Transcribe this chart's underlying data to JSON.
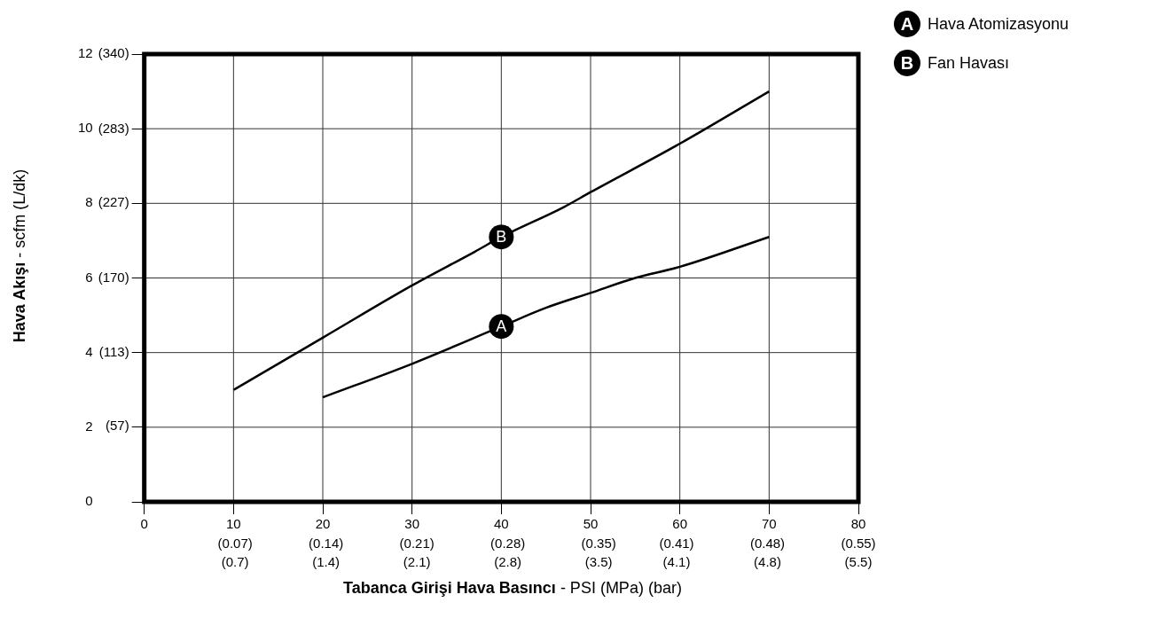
{
  "chart_data": {
    "type": "line",
    "xlabel": "Tabanca Girişi Hava Basıncı - PSI (MPa) (bar)",
    "ylabel": "Hava Akışı - scfm (L/dk)",
    "xlim": [
      0,
      80
    ],
    "ylim": [
      0,
      12
    ],
    "xticks": [
      0,
      10,
      20,
      30,
      40,
      50,
      60,
      70,
      80
    ],
    "x2lim": [
      0,
      0.55
    ],
    "x2ticks": [
      {
        "value": 0.07,
        "label": "(0.07)"
      },
      {
        "value": 0.14,
        "label": "(0.14)"
      },
      {
        "value": 0.21,
        "label": "(0.21)"
      },
      {
        "value": 0.28,
        "label": "(0.28)"
      },
      {
        "value": 0.35,
        "label": "(0.35)"
      },
      {
        "value": 0.41,
        "label": "(0.41)"
      },
      {
        "value": 0.48,
        "label": "(0.48)"
      },
      {
        "value": 0.55,
        "label": "(0.55)"
      }
    ],
    "yticks": [
      0,
      2,
      4,
      6,
      8,
      10,
      12
    ],
    "y2lim": [
      0,
      340
    ],
    "y2ticks": [
      {
        "value": 57,
        "label": "(57)"
      },
      {
        "value": 113,
        "label": "(113)"
      },
      {
        "value": 170,
        "label": "(170)"
      },
      {
        "value": 227,
        "label": "(227)"
      },
      {
        "value": 283,
        "label": "(283)"
      },
      {
        "value": 340,
        "label": "(340)"
      }
    ],
    "series": [
      {
        "name": "Hava Atomizasyonu",
        "color": "#000000",
        "x": [
          20,
          30,
          40,
          45,
          50,
          55,
          60,
          70
        ],
        "values": [
          2.8,
          3.7,
          4.7,
          5.2,
          5.6,
          6.0,
          6.3,
          7.1
        ]
      },
      {
        "name": "Fan Havası",
        "color": "#000000",
        "x": [
          10,
          20,
          30,
          37,
          40,
          47,
          50,
          60,
          70
        ],
        "values": [
          3.0,
          4.4,
          5.8,
          6.7,
          7.1,
          7.9,
          8.3,
          9.6,
          11.0
        ]
      }
    ],
    "annotations": [
      {
        "text": "A",
        "x": 40,
        "y": 4.7
      },
      {
        "text": "B",
        "x": 40,
        "y": 7.1
      },
      "(0.7)",
      "(1.4)",
      "(2.1)",
      "(2.8)",
      "(3.5)",
      "(4.1)",
      "(4.8)",
      "(5.5)"
    ],
    "grid": true,
    "legend": "top right",
    "marker": "none",
    "line_style": "solid"
  }
}
